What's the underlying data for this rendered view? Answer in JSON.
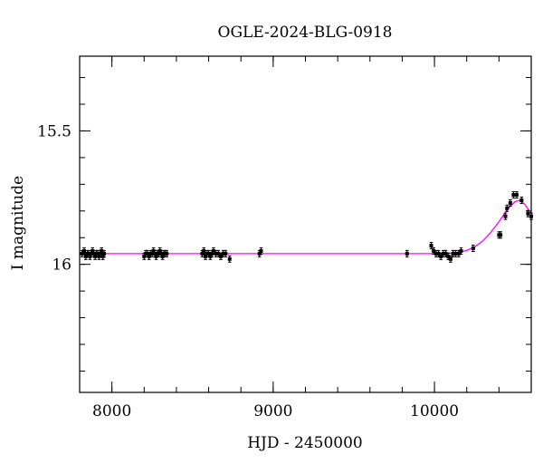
{
  "chart_data": {
    "type": "scatter",
    "title": "OGLE-2024-BLG-0918",
    "xlabel": "HJD - 2450000",
    "ylabel": "I magnitude",
    "xlim": [
      7800,
      10600
    ],
    "ylim": [
      16.48,
      15.22
    ],
    "y_inverted": true,
    "x_major_ticks": [
      8000,
      9000,
      10000
    ],
    "x_tick_labels": [
      "8000",
      "9000",
      "10000"
    ],
    "x_minor_step": 200,
    "y_major_ticks": [
      15.5,
      16
    ],
    "y_tick_labels": [
      "15.5",
      "16"
    ],
    "y_minor_step": 0.1,
    "grid": false,
    "model_color": "#ff00ff",
    "point_color": "#000000",
    "series": [
      {
        "style": "points-with-errorbars",
        "x": [
          7815,
          7828,
          7838,
          7848,
          7856,
          7864,
          7872,
          7880,
          7888,
          7896,
          7904,
          7912,
          7920,
          7928,
          7936,
          7944,
          7952,
          8200,
          8210,
          8220,
          8230,
          8240,
          8250,
          8258,
          8266,
          8274,
          8282,
          8290,
          8298,
          8306,
          8314,
          8322,
          8330,
          8340,
          8560,
          8570,
          8580,
          8590,
          8600,
          8610,
          8620,
          8630,
          8645,
          8660,
          8675,
          8690,
          8705,
          8730,
          8915,
          8925,
          9830,
          9980,
          9995,
          10010,
          10025,
          10040,
          10055,
          10070,
          10085,
          10100,
          10115,
          10130,
          10150,
          10165,
          10240,
          10400,
          10410,
          10440,
          10450,
          10470,
          10490,
          10510,
          10540,
          10580,
          10600
        ],
        "y": [
          15.96,
          15.95,
          15.97,
          15.96,
          15.96,
          15.97,
          15.96,
          15.95,
          15.96,
          15.97,
          15.96,
          15.96,
          15.97,
          15.96,
          15.95,
          15.97,
          15.96,
          15.97,
          15.96,
          15.96,
          15.97,
          15.96,
          15.96,
          15.95,
          15.96,
          15.97,
          15.96,
          15.96,
          15.95,
          15.96,
          15.97,
          15.96,
          15.96,
          15.96,
          15.96,
          15.95,
          15.97,
          15.96,
          15.96,
          15.97,
          15.96,
          15.95,
          15.96,
          15.96,
          15.97,
          15.96,
          15.96,
          15.98,
          15.96,
          15.95,
          15.96,
          15.93,
          15.95,
          15.96,
          15.96,
          15.97,
          15.96,
          15.96,
          15.97,
          15.98,
          15.96,
          15.96,
          15.96,
          15.95,
          15.94,
          15.89,
          15.89,
          15.82,
          15.79,
          15.77,
          15.74,
          15.74,
          15.76,
          15.81,
          15.82
        ],
        "yerr": 0.012
      },
      {
        "style": "line",
        "x": [
          7800,
          8500,
          9000,
          9500,
          9900,
          10000,
          10100,
          10150,
          10200,
          10250,
          10300,
          10350,
          10400,
          10450,
          10500,
          10530,
          10560,
          10600
        ],
        "y": [
          15.96,
          15.96,
          15.96,
          15.96,
          15.96,
          15.96,
          15.958,
          15.955,
          15.948,
          15.935,
          15.912,
          15.88,
          15.84,
          15.795,
          15.765,
          15.76,
          15.775,
          15.81
        ]
      }
    ]
  }
}
